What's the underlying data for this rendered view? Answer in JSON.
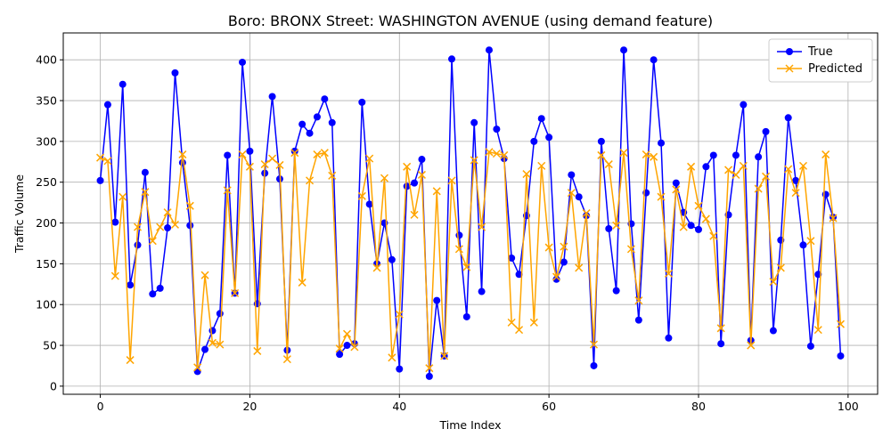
{
  "chart_data": {
    "type": "line",
    "title": "Boro: BRONX Street: WASHINGTON AVENUE (using demand feature)",
    "xlabel": "Time Index",
    "ylabel": "Traffic Volume",
    "xlim": [
      -4.95,
      103.95
    ],
    "ylim": [
      -9.95,
      432.95
    ],
    "xticks": [
      0,
      20,
      40,
      60,
      80,
      100
    ],
    "yticks": [
      0,
      50,
      100,
      150,
      200,
      250,
      300,
      350,
      400
    ],
    "grid": true,
    "legend_position": "top-right",
    "series": [
      {
        "name": "True",
        "color": "#0000ff",
        "marker": "circle",
        "values": [
          252,
          345,
          201,
          370,
          124,
          173,
          262,
          113,
          120,
          194,
          384,
          274,
          197,
          18,
          45,
          68,
          89,
          283,
          114,
          397,
          288,
          101,
          261,
          355,
          254,
          44,
          288,
          321,
          310,
          330,
          352,
          323,
          39,
          50,
          52,
          348,
          223,
          150,
          200,
          155,
          21,
          245,
          249,
          278,
          12,
          105,
          37,
          401,
          185,
          85,
          323,
          116,
          412,
          315,
          279,
          157,
          137,
          209,
          300,
          328,
          305,
          131,
          152,
          259,
          232,
          209,
          25,
          300,
          193,
          117,
          412,
          199,
          81,
          237,
          400,
          298,
          59,
          249,
          213,
          197,
          192,
          269,
          283,
          52,
          210,
          283,
          345,
          56,
          281,
          312,
          68,
          179,
          329,
          252,
          173,
          49,
          137,
          235,
          207,
          37
        ]
      },
      {
        "name": "Predicted",
        "color": "#ffa500",
        "marker": "x",
        "values": [
          280,
          276,
          135,
          232,
          32,
          195,
          238,
          178,
          195,
          213,
          198,
          284,
          221,
          23,
          136,
          53,
          51,
          240,
          114,
          284,
          269,
          43,
          272,
          279,
          271,
          33,
          286,
          127,
          252,
          284,
          286,
          258,
          46,
          64,
          48,
          233,
          279,
          145,
          255,
          35,
          88,
          269,
          210,
          259,
          22,
          239,
          37,
          252,
          168,
          146,
          277,
          195,
          287,
          285,
          283,
          78,
          69,
          260,
          78,
          270,
          170,
          134,
          171,
          237,
          145,
          212,
          51,
          283,
          272,
          197,
          286,
          168,
          105,
          284,
          281,
          232,
          138,
          241,
          195,
          269,
          221,
          205,
          184,
          71,
          265,
          259,
          270,
          50,
          242,
          257,
          128,
          145,
          266,
          237,
          270,
          178,
          69,
          284,
          206,
          76
        ]
      }
    ]
  }
}
